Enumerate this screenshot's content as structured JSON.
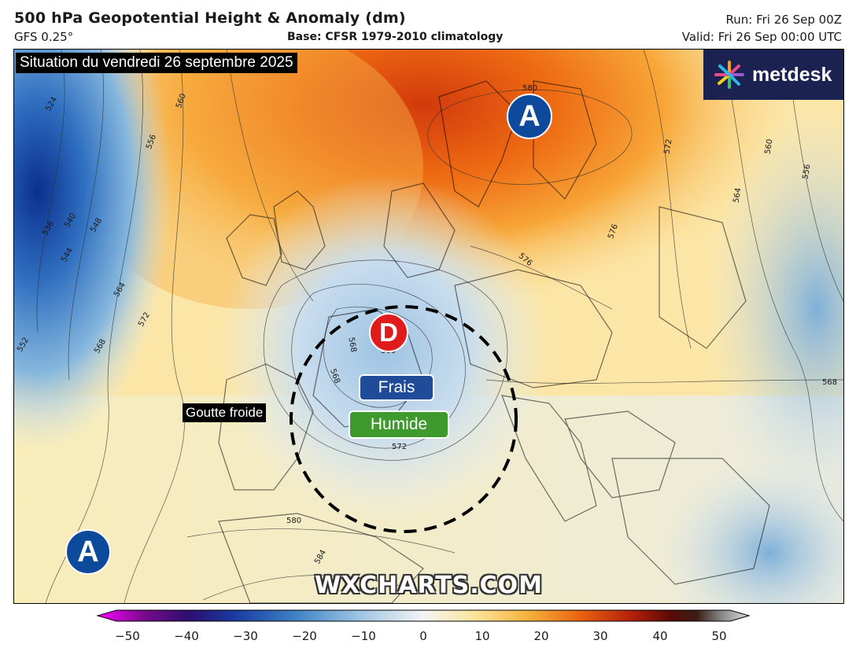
{
  "header": {
    "title": "500 hPa Geopotential Height & Anomaly (dm)",
    "model": "GFS 0.25°",
    "base": "Base: CFSR 1979-2010 climatology",
    "run": "Run: Fri 26 Sep 00Z",
    "valid": "Valid: Fri 26 Sep 00:00 UTC"
  },
  "map": {
    "situation": "Situation du vendredi 26 septembre 2025",
    "logo": "metdesk",
    "high_label": "A",
    "low_label": "D",
    "tag_cool": "Frais",
    "tag_humid": "Humide",
    "cutoff_label": "Goutte froide",
    "watermark": "WXCHARTS.COM",
    "contour_labels": [
      "524",
      "536",
      "540",
      "544",
      "548",
      "552",
      "556",
      "560",
      "564",
      "568",
      "572",
      "576",
      "580",
      "584"
    ]
  },
  "colors": {
    "high_marker": "#0d4a9c",
    "low_marker": "#e01b1b",
    "frais_tag": "#1f4b99",
    "humide_tag": "#3e9a2c"
  },
  "colorbar": {
    "ticks": [
      "−50",
      "−40",
      "−30",
      "−20",
      "−10",
      "0",
      "10",
      "20",
      "30",
      "40",
      "50"
    ]
  }
}
